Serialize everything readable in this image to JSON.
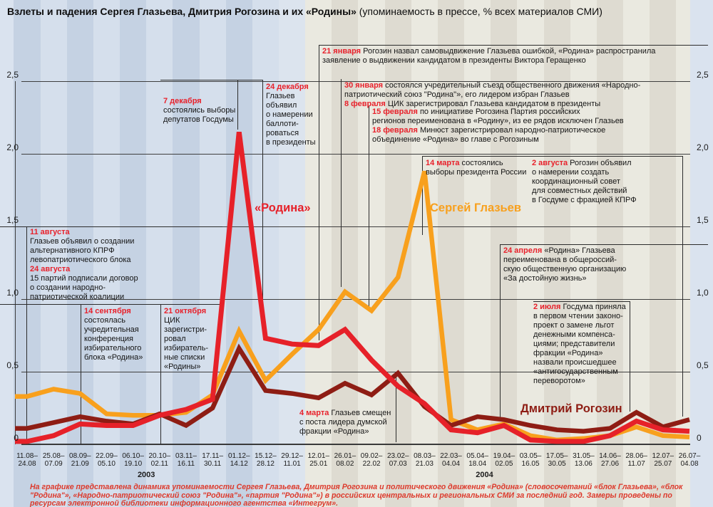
{
  "title": {
    "main": "Взлеты и падения Сергея Глазьева, Дмитрия Рогозина и их «Родины»",
    "subtitle": " (упоминаемость в прессе, % всех материалов СМИ)"
  },
  "colors": {
    "rodina": "#e62129",
    "glazyev": "#f8a01d",
    "rogozin": "#8e1d14",
    "date_red": "#e8212b",
    "footer_red": "#dd3a2c",
    "stripe_blue_dark": "#c5d2e3",
    "stripe_blue_light": "#d5dfec",
    "stripe_transition": "#dce4ee",
    "stripe_beige_dark": "#dedbd1",
    "stripe_beige_light": "#eae9e0",
    "edge_band": "#dae3ef",
    "grid": "#3e3e3e"
  },
  "y_axis": {
    "tick_labels": [
      "0",
      "0,5",
      "1,0",
      "1,5",
      "2,0",
      "2,5"
    ],
    "tick_values": [
      0,
      0.5,
      1.0,
      1.5,
      2.0,
      2.5
    ]
  },
  "x_axis": {
    "years": [
      "2003",
      "2004"
    ]
  },
  "chart_data": {
    "type": "line",
    "title": "Взлеты и падения Сергея Глазьева, Дмитрия Рогозина и их «Родины» (упоминаемость в прессе, % всех материалов СМИ)",
    "xlabel": "",
    "ylabel": "% всех материалов СМИ",
    "ylim": [
      0,
      2.5
    ],
    "grid": true,
    "legend_position": "inline-labels",
    "categories": [
      "11.08–24.08",
      "25.08–07.09",
      "08.09–21.09",
      "22.09–05.10",
      "06.10–19.10",
      "20.10–02.11",
      "03.11–16.11",
      "17.11–30.11",
      "01.12–14.12",
      "15.12–28.12",
      "29.12–11.01",
      "12.01–25.01",
      "26.01–08.02",
      "09.02–22.02",
      "23.02–07.03",
      "08.03–21.03",
      "22.03–04.04",
      "05.04–18.04",
      "19.04–02.05",
      "03.05–16.05",
      "17.05–30.05",
      "31.05–13.06",
      "14.06–27.06",
      "28.06–11.07",
      "12.07–25.07",
      "26.07–04.08"
    ],
    "series": [
      {
        "name": "«Родина»",
        "color": "#e62129",
        "values": [
          0.02,
          0.06,
          0.14,
          0.13,
          0.13,
          0.2,
          0.24,
          0.31,
          2.15,
          0.73,
          0.69,
          0.68,
          0.79,
          0.58,
          0.4,
          0.28,
          0.1,
          0.08,
          0.13,
          0.03,
          0.02,
          0.02,
          0.06,
          0.16,
          0.1,
          0.09
        ]
      },
      {
        "name": "Сергей Глазьев",
        "color": "#f8a01d",
        "values": [
          0.33,
          0.38,
          0.35,
          0.21,
          0.2,
          0.2,
          0.22,
          0.34,
          0.78,
          0.44,
          0.62,
          0.79,
          1.05,
          0.92,
          1.15,
          1.88,
          0.17,
          0.1,
          0.14,
          0.06,
          0.03,
          0.04,
          0.06,
          0.12,
          0.06,
          0.05
        ]
      },
      {
        "name": "Дмитрий Рогозин",
        "color": "#8e1d14",
        "values": [
          0.11,
          0.15,
          0.19,
          0.16,
          0.14,
          0.21,
          0.13,
          0.25,
          0.66,
          0.37,
          0.35,
          0.32,
          0.42,
          0.34,
          0.49,
          0.26,
          0.13,
          0.19,
          0.17,
          0.13,
          0.1,
          0.09,
          0.11,
          0.22,
          0.12,
          0.17
        ]
      }
    ]
  },
  "annotations": [
    {
      "id": "aug11",
      "lines": [
        [
          {
            "t": "11 августа",
            "red": true
          }
        ],
        [
          {
            "t": "Глазьев объявил о создании",
            "red": false
          }
        ],
        [
          {
            "t": "альтернативного КПРФ",
            "red": false
          }
        ],
        [
          {
            "t": "левопатриотического блока",
            "red": false
          }
        ],
        [
          {
            "t": "24 августа",
            "red": true
          }
        ],
        [
          {
            "t": "15 партий подписали договор",
            "red": false
          }
        ],
        [
          {
            "t": "о создании народно-",
            "red": false
          }
        ],
        [
          {
            "t": "патриотической коалиции",
            "red": false
          }
        ]
      ]
    },
    {
      "id": "sep14",
      "lines": [
        [
          {
            "t": "14 сентября",
            "red": true
          }
        ],
        [
          {
            "t": "состоялась",
            "red": false
          }
        ],
        [
          {
            "t": "учредительная",
            "red": false
          }
        ],
        [
          {
            "t": "конференция",
            "red": false
          }
        ],
        [
          {
            "t": "избирательного",
            "red": false
          }
        ],
        [
          {
            "t": "блока «Родина»",
            "red": false
          }
        ]
      ]
    },
    {
      "id": "oct21",
      "lines": [
        [
          {
            "t": "21 октября",
            "red": true
          }
        ],
        [
          {
            "t": "ЦИК",
            "red": false
          }
        ],
        [
          {
            "t": "зарегистри-",
            "red": false
          }
        ],
        [
          {
            "t": "ровал",
            "red": false
          }
        ],
        [
          {
            "t": "избиратель-",
            "red": false
          }
        ],
        [
          {
            "t": "ные списки",
            "red": false
          }
        ],
        [
          {
            "t": "«Родины»",
            "red": false
          }
        ]
      ]
    },
    {
      "id": "dec7",
      "lines": [
        [
          {
            "t": "7 декабря",
            "red": true
          }
        ],
        [
          {
            "t": "состоялись выборы",
            "red": false
          }
        ],
        [
          {
            "t": "депутатов Госдумы",
            "red": false
          }
        ]
      ]
    },
    {
      "id": "dec24",
      "lines": [
        [
          {
            "t": "24 декабря",
            "red": true
          }
        ],
        [
          {
            "t": "Глазьев",
            "red": false
          }
        ],
        [
          {
            "t": "объявил",
            "red": false
          }
        ],
        [
          {
            "t": "о намерении",
            "red": false
          }
        ],
        [
          {
            "t": "баллоти-",
            "red": false
          }
        ],
        [
          {
            "t": "роваться",
            "red": false
          }
        ],
        [
          {
            "t": "в президенты",
            "red": false
          }
        ]
      ]
    },
    {
      "id": "jan21",
      "lines": [
        [
          {
            "t": "21 января ",
            "red": true
          },
          {
            "t": "Рогозин назвал самовыдвижение Глазьева ошибкой, «Родина» распространила",
            "red": false
          }
        ],
        [
          {
            "t": "заявление о выдвижении кандидатом в президенты Виктора Геращенко",
            "red": false
          }
        ]
      ]
    },
    {
      "id": "jan30",
      "lines": [
        [
          {
            "t": "30 января ",
            "red": true
          },
          {
            "t": "состоялся учредительный съезд общественного движения «Народно-",
            "red": false
          }
        ],
        [
          {
            "t": "патриотический союз \"Родина\"», его лидером избран Глазьев",
            "red": false
          }
        ],
        [
          {
            "t": "8 февраля ",
            "red": true
          },
          {
            "t": "ЦИК зарегистрировал Глазьева кандидатом в президенты",
            "red": false
          }
        ]
      ]
    },
    {
      "id": "feb15",
      "lines": [
        [
          {
            "t": "15 февраля ",
            "red": true
          },
          {
            "t": "по инициативе Рогозина Партия российских",
            "red": false
          }
        ],
        [
          {
            "t": "регионов переименована в «Родину», из ее рядов исключен Глазьев",
            "red": false
          }
        ],
        [
          {
            "t": "18 февраля ",
            "red": true
          },
          {
            "t": "Минюст зарегистрировал народно-патриотическое",
            "red": false
          }
        ],
        [
          {
            "t": "объединение «Родина» во главе с Рогозиным",
            "red": false
          }
        ]
      ]
    },
    {
      "id": "mar14",
      "lines": [
        [
          {
            "t": "14 марта ",
            "red": true
          },
          {
            "t": "состоялись",
            "red": false
          }
        ],
        [
          {
            "t": "выборы президента России",
            "red": false
          }
        ]
      ]
    },
    {
      "id": "aug2",
      "lines": [
        [
          {
            "t": "2 августа ",
            "red": true
          },
          {
            "t": "Рогозин объявил",
            "red": false
          }
        ],
        [
          {
            "t": "о намерении создать",
            "red": false
          }
        ],
        [
          {
            "t": "координационный совет",
            "red": false
          }
        ],
        [
          {
            "t": "для совместных действий",
            "red": false
          }
        ],
        [
          {
            "t": "в Госдуме с фракцией КПРФ",
            "red": false
          }
        ]
      ]
    },
    {
      "id": "apr24",
      "lines": [
        [
          {
            "t": "24 апреля ",
            "red": true
          },
          {
            "t": "«Родина» Глазьева",
            "red": false
          }
        ],
        [
          {
            "t": "переименована в общероссий-",
            "red": false
          }
        ],
        [
          {
            "t": "скую общественную организацию",
            "red": false
          }
        ],
        [
          {
            "t": "«За достойную жизнь»",
            "red": false
          }
        ]
      ]
    },
    {
      "id": "jul2",
      "lines": [
        [
          {
            "t": "2 июля ",
            "red": true
          },
          {
            "t": "Госдума приняла",
            "red": false
          }
        ],
        [
          {
            "t": "в первом чтении законо-",
            "red": false
          }
        ],
        [
          {
            "t": "проект о замене льгот",
            "red": false
          }
        ],
        [
          {
            "t": "денежными компенса-",
            "red": false
          }
        ],
        [
          {
            "t": "циями; представители",
            "red": false
          }
        ],
        [
          {
            "t": "фракции «Родина»",
            "red": false
          }
        ],
        [
          {
            "t": "назвали происшедшее",
            "red": false
          }
        ],
        [
          {
            "t": "«антигосударственным",
            "red": false
          }
        ],
        [
          {
            "t": "переворотом»",
            "red": false
          }
        ]
      ]
    },
    {
      "id": "mar4",
      "lines": [
        [
          {
            "t": "4 марта ",
            "red": true
          },
          {
            "t": "Глазьев смещен",
            "red": false
          }
        ],
        [
          {
            "t": "с поста лидера думской",
            "red": false
          }
        ],
        [
          {
            "t": "фракции «Родина»",
            "red": false
          }
        ]
      ]
    }
  ],
  "footnote": "На графике представлена динамика упоминаемости Сергея Глазьева, Дмитрия Рогозина и политического движения «Родина» (словосочетаний «блок Глазьева», «блок \"Родина\"», «Народно-патриотический союз \"Родина\"», «партия \"Родина\"») в российских центральных и региональных СМИ за последний год. Замеры проведены по ресурсам электронной библиотеки информационного агентства «Интегрум»."
}
